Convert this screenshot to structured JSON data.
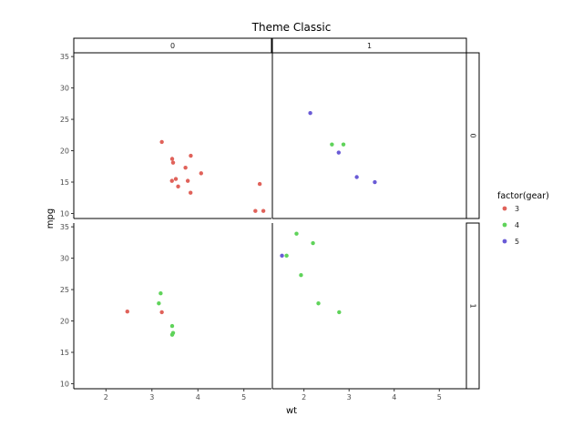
{
  "chart_data": {
    "type": "scatter",
    "title": "Theme Classic",
    "xlabel": "wt",
    "ylabel": "mpg",
    "xlim": [
      1.3,
      5.6
    ],
    "ylim": [
      9.2,
      35.6
    ],
    "xticks": [
      2,
      3,
      4,
      5
    ],
    "yticks": [
      10,
      15,
      20,
      25,
      30,
      35
    ],
    "grid": false,
    "facet_col_labels": [
      "0",
      "1"
    ],
    "facet_row_labels": [
      "0",
      "1"
    ],
    "legend": {
      "title": "factor(gear)",
      "position": "right",
      "entries": [
        {
          "label": "3",
          "color": "#e0625a"
        },
        {
          "label": "4",
          "color": "#5fd35a"
        },
        {
          "label": "5",
          "color": "#6a5bd6"
        }
      ]
    },
    "panels": [
      {
        "col": "0",
        "row": "0",
        "points": [
          {
            "x": 3.215,
            "y": 21.4,
            "gear": "3"
          },
          {
            "x": 3.44,
            "y": 18.7,
            "gear": "3"
          },
          {
            "x": 3.46,
            "y": 18.1,
            "gear": "3"
          },
          {
            "x": 3.57,
            "y": 14.3,
            "gear": "3"
          },
          {
            "x": 4.07,
            "y": 16.4,
            "gear": "3"
          },
          {
            "x": 3.73,
            "y": 17.3,
            "gear": "3"
          },
          {
            "x": 3.78,
            "y": 15.2,
            "gear": "3"
          },
          {
            "x": 5.25,
            "y": 10.4,
            "gear": "3"
          },
          {
            "x": 5.424,
            "y": 10.4,
            "gear": "3"
          },
          {
            "x": 5.345,
            "y": 14.7,
            "gear": "3"
          },
          {
            "x": 3.52,
            "y": 15.5,
            "gear": "3"
          },
          {
            "x": 3.435,
            "y": 15.2,
            "gear": "3"
          },
          {
            "x": 3.84,
            "y": 13.3,
            "gear": "3"
          },
          {
            "x": 3.845,
            "y": 19.2,
            "gear": "3"
          }
        ]
      },
      {
        "col": "1",
        "row": "0",
        "points": [
          {
            "x": 2.14,
            "y": 26.0,
            "gear": "5"
          },
          {
            "x": 2.77,
            "y": 19.7,
            "gear": "5"
          },
          {
            "x": 3.17,
            "y": 15.8,
            "gear": "5"
          },
          {
            "x": 3.57,
            "y": 15.0,
            "gear": "5"
          },
          {
            "x": 2.62,
            "y": 21.0,
            "gear": "4"
          },
          {
            "x": 2.875,
            "y": 21.0,
            "gear": "4"
          }
        ]
      },
      {
        "col": "0",
        "row": "1",
        "points": [
          {
            "x": 2.465,
            "y": 21.5,
            "gear": "3"
          },
          {
            "x": 3.215,
            "y": 21.4,
            "gear": "3"
          },
          {
            "x": 3.19,
            "y": 24.4,
            "gear": "4"
          },
          {
            "x": 3.15,
            "y": 22.8,
            "gear": "4"
          },
          {
            "x": 3.44,
            "y": 19.2,
            "gear": "4"
          },
          {
            "x": 3.44,
            "y": 17.8,
            "gear": "4"
          },
          {
            "x": 3.46,
            "y": 18.1,
            "gear": "4"
          }
        ]
      },
      {
        "col": "1",
        "row": "1",
        "points": [
          {
            "x": 1.513,
            "y": 30.4,
            "gear": "5"
          },
          {
            "x": 2.32,
            "y": 22.8,
            "gear": "4"
          },
          {
            "x": 2.2,
            "y": 32.4,
            "gear": "4"
          },
          {
            "x": 1.615,
            "y": 30.4,
            "gear": "4"
          },
          {
            "x": 1.835,
            "y": 33.9,
            "gear": "4"
          },
          {
            "x": 1.935,
            "y": 27.3,
            "gear": "4"
          },
          {
            "x": 2.78,
            "y": 21.4,
            "gear": "4"
          }
        ]
      }
    ]
  }
}
